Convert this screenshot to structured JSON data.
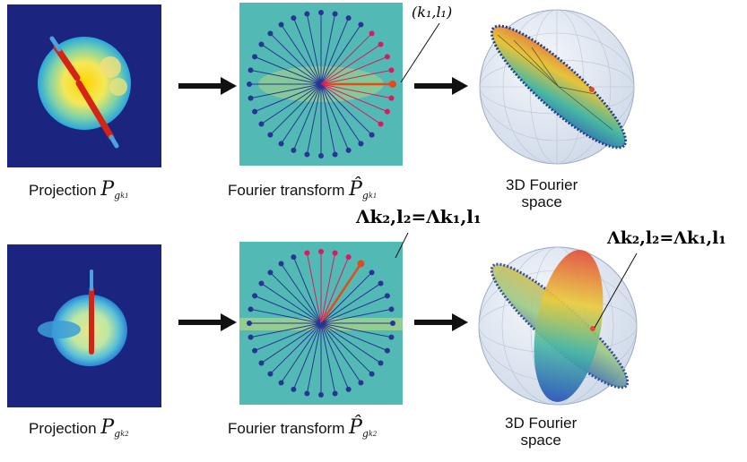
{
  "rows": [
    {
      "projection_caption": "Projection",
      "projection_symbol": "P",
      "projection_sub": "g",
      "projection_subsub": "k",
      "projection_subsub_index": "1",
      "fourier_caption": "Fourier transform",
      "fourier_symbol": "P̂",
      "fourier_sub": "g",
      "fourier_subsub": "k",
      "fourier_subsub_index": "1",
      "space_caption_line1": "3D Fourier",
      "space_caption_line2": "space",
      "point_label": "(k₁,l₁)"
    },
    {
      "projection_caption": "Projection",
      "projection_symbol": "P",
      "projection_sub": "g",
      "projection_subsub": "k",
      "projection_subsub_index": "2",
      "fourier_caption": "Fourier transform",
      "fourier_symbol": "P̂",
      "fourier_sub": "g",
      "fourier_subsub": "k",
      "fourier_subsub_index": "2",
      "space_caption_line1": "3D Fourier",
      "space_caption_line2": "space",
      "lambda_eq_label": "Λk₂,l₂=Λk₁,l₁",
      "lambda_eq_label_sphere": "Λk₂,l₂=Λk₁,l₁"
    }
  ],
  "colors": {
    "background_dark": "#1a237e",
    "arrow": "#111111",
    "ray_blue": "#283593",
    "ray_magenta": "#d81b60",
    "ray_red": "#e64a19",
    "fourier_bg": "#66c2a5"
  }
}
